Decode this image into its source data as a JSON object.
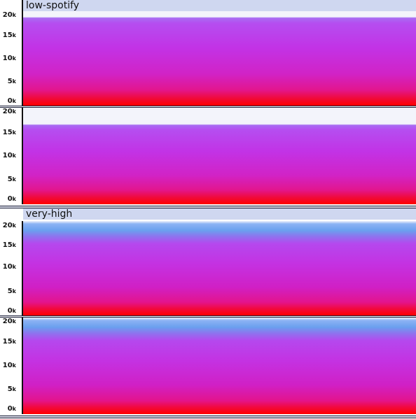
{
  "tracks": [
    {
      "name": "low-spotify",
      "channels": [
        {
          "ticks": [
            "20",
            "15",
            "10",
            "5",
            "0"
          ]
        },
        {
          "ticks": [
            "20",
            "15",
            "10",
            "5",
            "0"
          ]
        }
      ]
    },
    {
      "name": "very-high",
      "channels": [
        {
          "ticks": [
            "20",
            "15",
            "10",
            "5",
            "0"
          ]
        },
        {
          "ticks": [
            "20",
            "15",
            "10",
            "5",
            "0"
          ]
        }
      ]
    }
  ],
  "tick_suffix": "k",
  "colors": {
    "label_bg": "#cfd7f0",
    "spectrogram_low": "#c233e6",
    "spectrogram_peak": "#ff0000",
    "high_freq_band": "#6aa0ee"
  }
}
